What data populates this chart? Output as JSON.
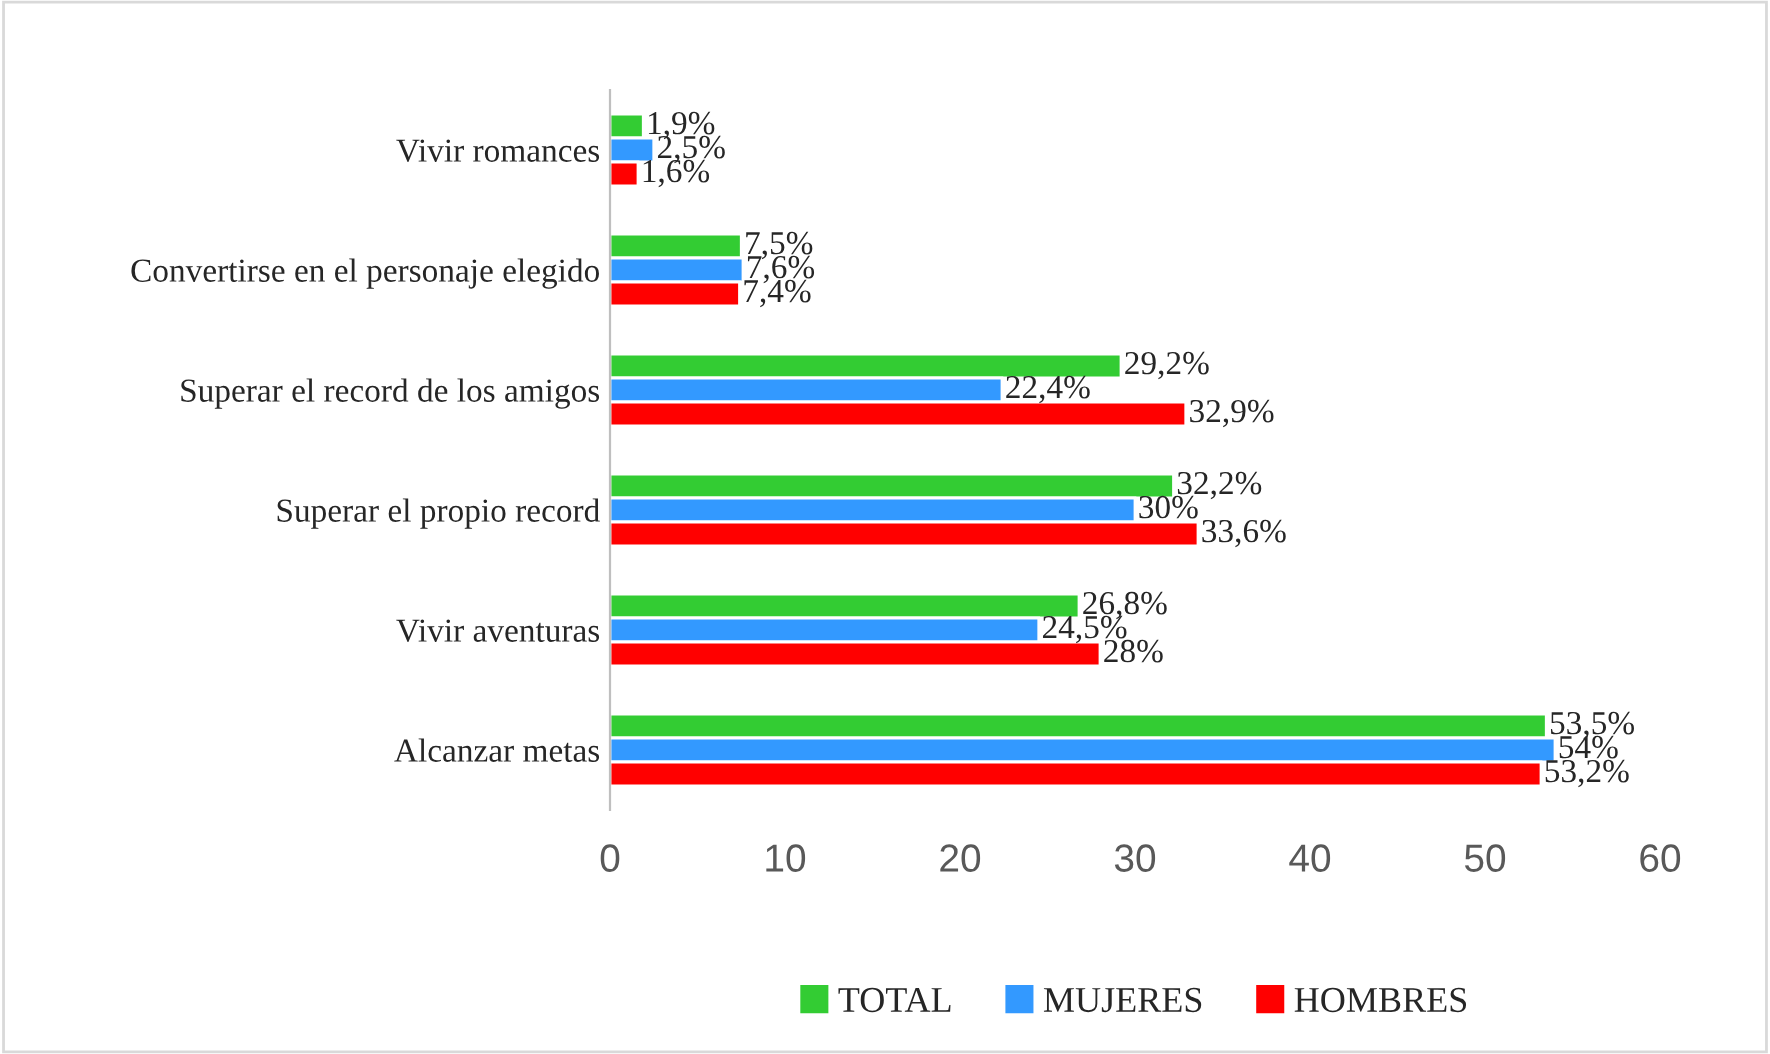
{
  "chart_data": {
    "type": "bar",
    "orientation": "horizontal",
    "categories": [
      "Vivir romances",
      "Convertirse en el personaje elegido",
      "Superar el record de los amigos",
      "Superar el propio record",
      "Vivir aventuras",
      "Alcanzar metas"
    ],
    "series": [
      {
        "name": "TOTAL",
        "color": "#33cc33",
        "values": [
          1.9,
          7.5,
          29.2,
          32.2,
          26.8,
          53.5
        ],
        "value_labels": [
          "1,9%",
          "7,5%",
          "29,2%",
          "32,2%",
          "26,8%",
          "53,5%"
        ]
      },
      {
        "name": "MUJERES",
        "color": "#3399ff",
        "values": [
          2.5,
          7.6,
          22.4,
          30,
          24.5,
          54
        ],
        "value_labels": [
          "2,5%",
          "7,6%",
          "22,4%",
          "30%",
          "24,5%",
          "54%"
        ]
      },
      {
        "name": "HOMBRES",
        "color": "#ff0000",
        "values": [
          1.6,
          7.4,
          32.9,
          33.6,
          28,
          53.2
        ],
        "value_labels": [
          "1,6%",
          "7,4%",
          "32,9%",
          "33,6%",
          "28%",
          "53,2%"
        ]
      }
    ],
    "xlim": [
      0,
      60
    ],
    "xticks": [
      0,
      10,
      20,
      30,
      40,
      50,
      60
    ],
    "grid": false,
    "legend": "bottom"
  }
}
